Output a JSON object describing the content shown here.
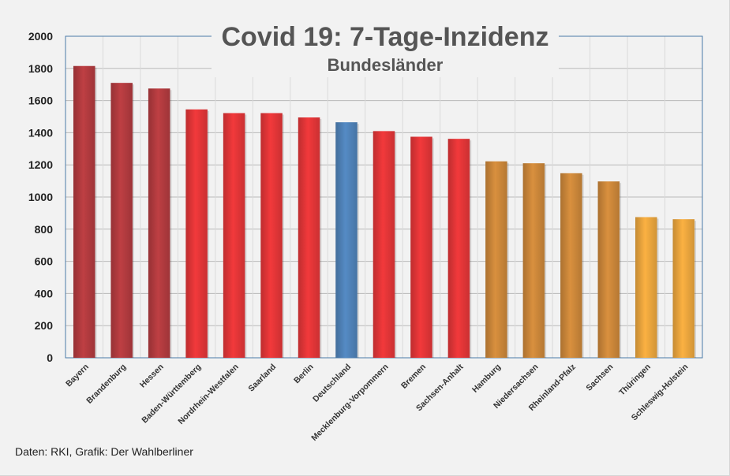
{
  "chart_data": {
    "type": "bar",
    "title": "Covid 19: 7-Tage-Inzidenz",
    "subtitle": "Bundesländer",
    "ylim": [
      0,
      2000
    ],
    "yticks": [
      0,
      200,
      400,
      600,
      800,
      1000,
      1200,
      1400,
      1600,
      1800,
      2000
    ],
    "grid": true,
    "categories": [
      "Bayern",
      "Brandenburg",
      "Hessen",
      "Baden-Württemberg",
      "Nordrhein-Westfalen",
      "Saarland",
      "Berlin",
      "Deutschland",
      "Mecklenburg-Vorpommern",
      "Bremen",
      "Sachsen-Anhalt",
      "Hamburg",
      "Niedersachsen",
      "Rheinland-Pfalz",
      "Sachsen",
      "Thüringen",
      "Schleswig-Holstein"
    ],
    "values": [
      1815,
      1710,
      1675,
      1545,
      1522,
      1522,
      1495,
      1465,
      1410,
      1375,
      1362,
      1222,
      1210,
      1148,
      1097,
      875,
      862
    ],
    "colors": [
      "#b03a3e",
      "#b03a3e",
      "#b03a3e",
      "#e03537",
      "#e03537",
      "#e03537",
      "#e03537",
      "#4f81b6",
      "#e03537",
      "#e03537",
      "#e03537",
      "#c98539",
      "#c98539",
      "#c98539",
      "#c98539",
      "#e8a43d",
      "#e8a43d"
    ]
  },
  "footer": {
    "source": "Daten: RKI, Grafik: Der Wahlberliner"
  }
}
